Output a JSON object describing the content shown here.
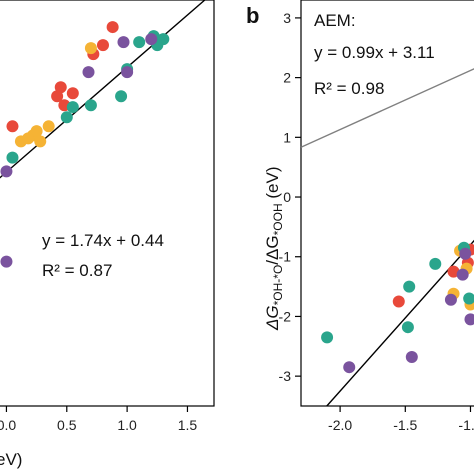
{
  "colors": {
    "red": "#e8493a",
    "orange": "#f5b335",
    "teal": "#2aa58c",
    "purple": "#7a539e",
    "fit": "#000000",
    "aem_line": "#808080"
  },
  "chart_data": [
    {
      "type": "scatter",
      "xlim": [
        -0.07,
        1.72
      ],
      "ylim": [
        -3.45,
        3.3
      ],
      "xticks": [
        0.0,
        0.5,
        1.0,
        1.5
      ],
      "xtick_labels": [
        "0.0",
        "0.5",
        "1.0",
        "1.5"
      ],
      "xlabel_fragment": "eV)",
      "equation_line1": "y = 1.74x + 0.44",
      "equation_line2": "R² = 0.87",
      "fit": {
        "slope": 1.74,
        "intercept": 0.44
      },
      "series": [
        {
          "color_key": "red",
          "points": [
            [
              0.05,
              1.2
            ],
            [
              0.42,
              1.7
            ],
            [
              0.45,
              1.85
            ],
            [
              0.55,
              1.75
            ],
            [
              0.48,
              1.55
            ],
            [
              0.72,
              2.4
            ],
            [
              0.8,
              2.55
            ],
            [
              0.88,
              2.85
            ]
          ]
        },
        {
          "color_key": "orange",
          "points": [
            [
              0.12,
              0.95
            ],
            [
              0.22,
              1.05
            ],
            [
              0.25,
              1.12
            ],
            [
              0.28,
              0.95
            ],
            [
              0.35,
              1.2
            ],
            [
              0.18,
              1.0
            ],
            [
              0.7,
              2.5
            ]
          ]
        },
        {
          "color_key": "teal",
          "points": [
            [
              0.05,
              0.68
            ],
            [
              0.5,
              1.35
            ],
            [
              0.7,
              1.55
            ],
            [
              0.95,
              1.7
            ],
            [
              1.1,
              2.6
            ],
            [
              1.22,
              2.7
            ],
            [
              1.3,
              2.65
            ],
            [
              1.25,
              2.55
            ],
            [
              1.0,
              2.15
            ],
            [
              0.55,
              1.52
            ]
          ]
        },
        {
          "color_key": "purple",
          "points": [
            [
              0.0,
              0.45
            ],
            [
              0.68,
              2.1
            ],
            [
              0.97,
              2.6
            ],
            [
              1.2,
              2.65
            ],
            [
              1.0,
              2.1
            ],
            [
              0.0,
              -1.05
            ]
          ]
        }
      ]
    },
    {
      "type": "scatter",
      "panel_label": "b",
      "xlim": [
        -2.3,
        -0.95
      ],
      "ylim": [
        -3.5,
        3.3
      ],
      "xticks": [
        -2.0,
        -1.5,
        -1.0
      ],
      "xtick_labels": [
        "-2.0",
        "-1.5",
        "-1.0"
      ],
      "yticks": [
        3,
        2,
        1,
        0,
        -1,
        -2,
        -3
      ],
      "ytick_labels": [
        "3",
        "2",
        "1",
        "0",
        "-1",
        "-2",
        "-3"
      ],
      "ylabel_main": "ΔG",
      "ylabel_sub1": "*OH-*O",
      "ylabel_sep": "/ΔG",
      "ylabel_sub2": "*OOH",
      "ylabel_unit": " (eV)",
      "annotation_title": "AEM:",
      "equation_line1": "y = 0.99x + 3.11",
      "equation_line2": "R² = 0.98",
      "fit": {
        "slope": 2.45,
        "intercept": 1.65
      },
      "aem_line": {
        "slope": 0.99,
        "intercept": 3.11
      },
      "series": [
        {
          "color_key": "red",
          "points": [
            [
              -1.55,
              -1.75
            ],
            [
              -1.13,
              -1.25
            ],
            [
              -1.02,
              -1.1
            ],
            [
              -1.0,
              -0.88
            ]
          ]
        },
        {
          "color_key": "orange",
          "points": [
            [
              -1.13,
              -1.62
            ],
            [
              -1.08,
              -0.9
            ],
            [
              -1.03,
              -1.2
            ],
            [
              -1.0,
              -1.8
            ]
          ]
        },
        {
          "color_key": "teal",
          "points": [
            [
              -2.1,
              -2.35
            ],
            [
              -1.48,
              -2.18
            ],
            [
              -1.47,
              -1.5
            ],
            [
              -1.27,
              -1.12
            ],
            [
              -1.05,
              -0.85
            ],
            [
              -1.01,
              -1.7
            ]
          ]
        },
        {
          "color_key": "purple",
          "points": [
            [
              -1.93,
              -2.85
            ],
            [
              -1.45,
              -2.68
            ],
            [
              -1.15,
              -1.72
            ],
            [
              -1.06,
              -1.3
            ],
            [
              -1.04,
              -0.95
            ],
            [
              -1.0,
              -2.05
            ]
          ]
        }
      ]
    }
  ]
}
